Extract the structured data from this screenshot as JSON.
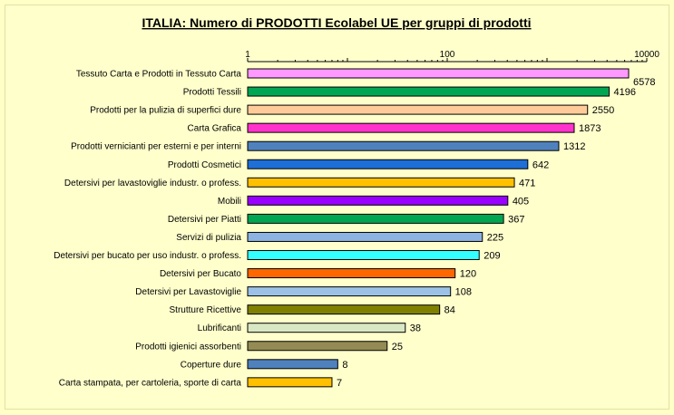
{
  "chart_data": {
    "type": "bar",
    "orientation": "horizontal",
    "title": "ITALIA: Numero di PRODOTTI  Ecolabel UE per gruppi di prodotti",
    "xscale": "log",
    "xlim": [
      1,
      10000
    ],
    "ticks": [
      "1",
      "100",
      "10000"
    ],
    "tick_values": [
      1,
      100,
      10000
    ],
    "grid": false,
    "categories": [
      "Tessuto Carta e Prodotti in Tessuto Carta",
      "Prodotti Tessili",
      "Prodotti per la pulizia di superfici dure",
      "Carta Grafica",
      "Prodotti vernicianti per esterni e per interni",
      "Prodotti Cosmetici",
      "Detersivi per lavastoviglie industr. o profess.",
      "Mobili",
      "Detersivi per Piatti",
      "Servizi di pulizia",
      "Detersivi per bucato per uso industr. o profess.",
      "Detersivi per Bucato",
      "Detersivi per Lavastoviglie",
      "Strutture Ricettive",
      "Lubrificanti",
      "Prodotti igienici assorbenti",
      "Coperture dure",
      "Carta stampata, per cartoleria, sporte di carta"
    ],
    "values": [
      6578,
      4196,
      2550,
      1873,
      1312,
      642,
      471,
      405,
      367,
      225,
      209,
      120,
      108,
      84,
      38,
      25,
      8,
      7
    ],
    "colors": [
      "#ff99ff",
      "#00a651",
      "#ffcc99",
      "#ff33cc",
      "#4f81bd",
      "#1e6fd6",
      "#ffc000",
      "#9900ff",
      "#00a651",
      "#8db3e2",
      "#33ffff",
      "#ff6600",
      "#9bc2e6",
      "#808000",
      "#d9e8c4",
      "#948a54",
      "#4f81bd",
      "#ffc000"
    ]
  }
}
